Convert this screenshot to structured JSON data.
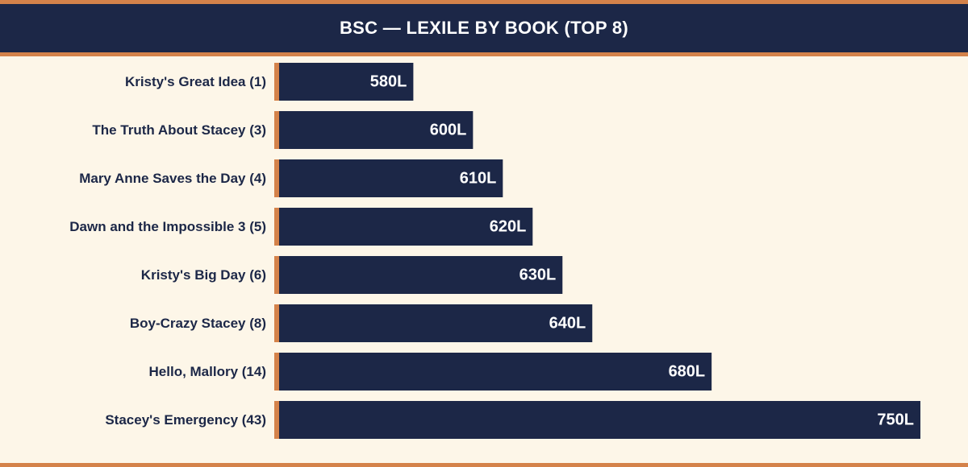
{
  "chart_data": {
    "type": "bar",
    "orientation": "horizontal",
    "title": "BSC — LEXILE BY BOOK (TOP 8)",
    "categories": [
      "Kristy's Great Idea (1)",
      "The Truth About Stacey (3)",
      "Mary Anne Saves the Day (4)",
      "Dawn and the Impossible 3 (5)",
      "Kristy's Big Day (6)",
      "Boy-Crazy Stacey (8)",
      "Hello, Mallory (14)",
      "Stacey's Emergency (43)"
    ],
    "values": [
      580,
      600,
      610,
      620,
      630,
      640,
      680,
      750
    ],
    "value_labels": [
      "580L",
      "600L",
      "610L",
      "620L",
      "630L",
      "640L",
      "680L",
      "750L"
    ],
    "value_unit_suffix": "L",
    "xlim": [
      535,
      750
    ],
    "grid": false,
    "legend": "none",
    "colors": {
      "bar": "#1c2747",
      "accent": "#d4824a",
      "background": "#fdf6e8",
      "title_band": "#1c2747",
      "value_text": "#ffffff",
      "category_text": "#1c2747"
    }
  }
}
